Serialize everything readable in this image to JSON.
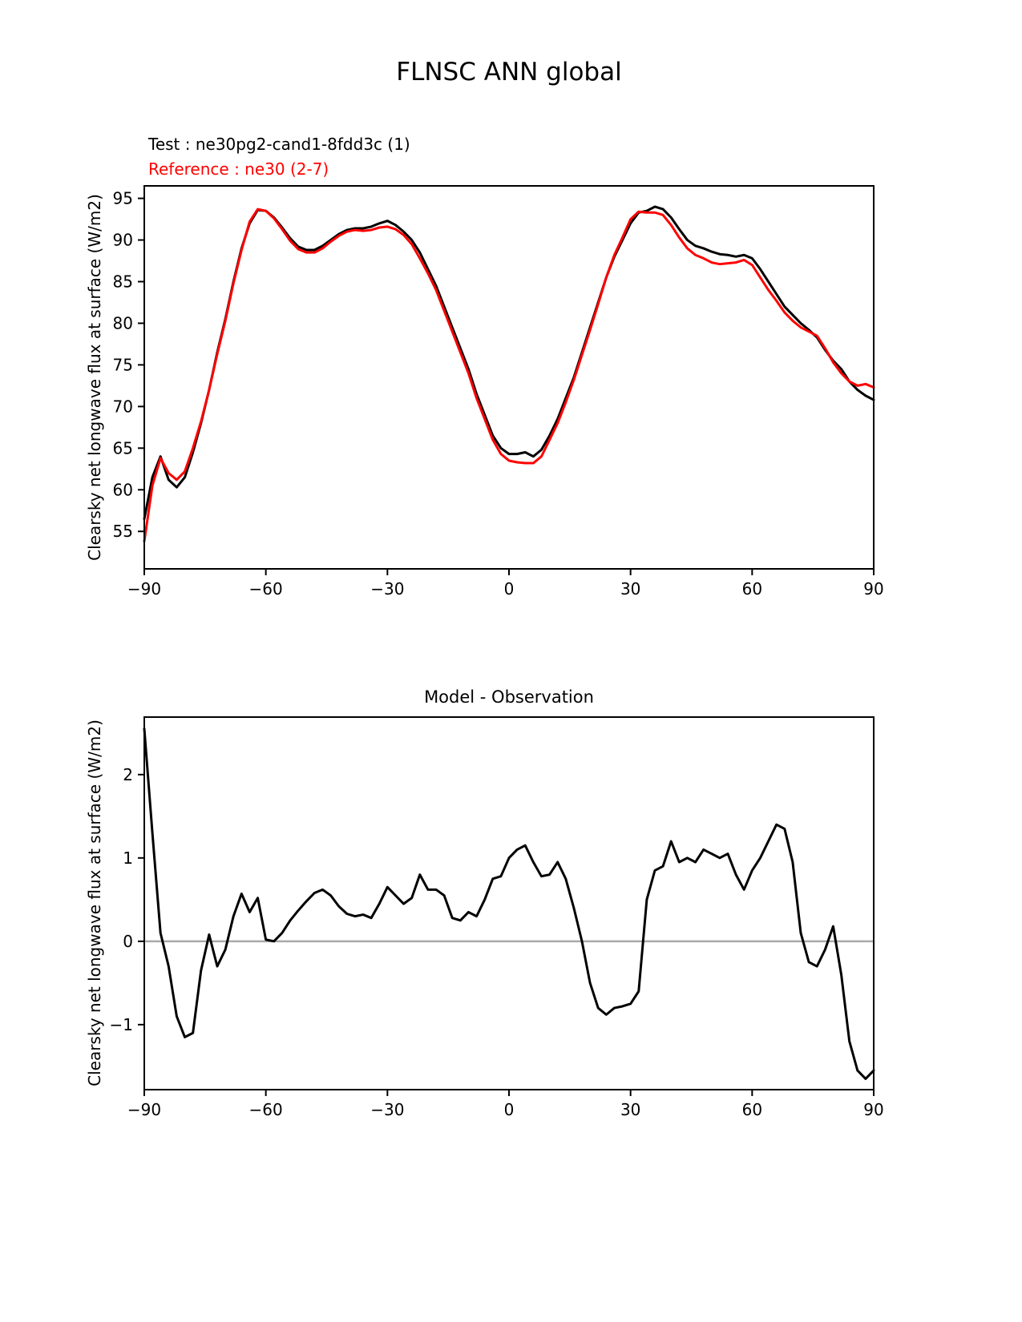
{
  "page_title": "FLNSC ANN global",
  "legend": {
    "test": {
      "label": "Test : ne30pg2-cand1-8fdd3c (1)",
      "color": "#000000"
    },
    "reference": {
      "label": "Reference : ne30 (2-7)",
      "color": "#ff0000"
    }
  },
  "chart_data": [
    {
      "type": "line",
      "title": "FLNSC ANN global",
      "ylabel": "Clearsky net longwave flux at surface (W/m2)",
      "xlim": [
        -90,
        90
      ],
      "ylim": [
        50.5,
        96.5
      ],
      "xticks": [
        -90,
        -60,
        -30,
        0,
        30,
        60,
        90
      ],
      "xtick_labels": [
        "−90",
        "−60",
        "−30",
        "0",
        "30",
        "60",
        "90"
      ],
      "yticks": [
        55,
        60,
        65,
        70,
        75,
        80,
        85,
        90,
        95
      ],
      "ytick_labels": [
        "55",
        "60",
        "65",
        "70",
        "75",
        "80",
        "85",
        "90",
        "95"
      ],
      "grid": false,
      "zero_line": false,
      "x": [
        -90,
        -88,
        -86,
        -84,
        -82,
        -80,
        -78,
        -76,
        -74,
        -72,
        -70,
        -68,
        -66,
        -64,
        -62,
        -60,
        -58,
        -56,
        -54,
        -52,
        -50,
        -48,
        -46,
        -44,
        -42,
        -40,
        -38,
        -36,
        -34,
        -32,
        -30,
        -28,
        -26,
        -24,
        -22,
        -20,
        -18,
        -16,
        -14,
        -12,
        -10,
        -8,
        -6,
        -4,
        -2,
        0,
        2,
        4,
        6,
        8,
        10,
        12,
        14,
        16,
        18,
        20,
        22,
        24,
        26,
        28,
        30,
        32,
        34,
        36,
        38,
        40,
        42,
        44,
        46,
        48,
        50,
        52,
        54,
        56,
        58,
        60,
        62,
        64,
        66,
        68,
        70,
        72,
        74,
        76,
        78,
        80,
        82,
        84,
        86,
        88,
        90
      ],
      "series": [
        {
          "name": "Test : ne30pg2-cand1-8fdd3c (1)",
          "color": "#000000",
          "values": [
            56.5,
            61.5,
            64.0,
            61.2,
            60.3,
            61.5,
            64.5,
            68.0,
            72.0,
            76.5,
            80.5,
            85.0,
            89.0,
            92.0,
            93.6,
            93.5,
            92.7,
            91.5,
            90.2,
            89.2,
            88.8,
            88.8,
            89.3,
            90.0,
            90.7,
            91.2,
            91.4,
            91.4,
            91.6,
            92.0,
            92.3,
            91.8,
            91.0,
            90.0,
            88.5,
            86.5,
            84.5,
            82.0,
            79.5,
            77.0,
            74.5,
            71.5,
            69.0,
            66.5,
            65.0,
            64.3,
            64.3,
            64.5,
            64.0,
            64.8,
            66.5,
            68.5,
            71.0,
            73.5,
            76.5,
            79.5,
            82.5,
            85.5,
            88.0,
            90.0,
            92.0,
            93.3,
            93.5,
            94.0,
            93.7,
            92.7,
            91.3,
            90.0,
            89.3,
            89.0,
            88.6,
            88.3,
            88.2,
            88.0,
            88.2,
            87.8,
            86.5,
            85.0,
            83.5,
            82.0,
            81.0,
            80.0,
            79.2,
            78.3,
            76.8,
            75.5,
            74.5,
            73.0,
            72.0,
            71.3,
            70.8
          ]
        },
        {
          "name": "Reference : ne30 (2-7)",
          "color": "#ff0000",
          "values": [
            53.8,
            60.5,
            63.8,
            62.0,
            61.2,
            62.2,
            65.0,
            68.2,
            72.0,
            76.3,
            80.3,
            84.8,
            88.8,
            92.2,
            93.7,
            93.5,
            92.6,
            91.3,
            89.9,
            88.9,
            88.5,
            88.5,
            89.0,
            89.8,
            90.5,
            91.0,
            91.2,
            91.1,
            91.2,
            91.5,
            91.6,
            91.3,
            90.6,
            89.5,
            87.8,
            86.0,
            84.0,
            81.5,
            79.0,
            76.5,
            74.0,
            71.0,
            68.5,
            66.0,
            64.3,
            63.5,
            63.3,
            63.2,
            63.2,
            64.0,
            66.0,
            68.0,
            70.5,
            73.2,
            76.2,
            79.2,
            82.3,
            85.5,
            88.2,
            90.3,
            92.5,
            93.4,
            93.3,
            93.3,
            93.0,
            91.8,
            90.3,
            89.0,
            88.2,
            87.8,
            87.3,
            87.1,
            87.2,
            87.3,
            87.6,
            87.0,
            85.5,
            84.0,
            82.7,
            81.3,
            80.3,
            79.5,
            79.0,
            78.5,
            77.0,
            75.3,
            74.0,
            73.0,
            72.5,
            72.7,
            72.3
          ]
        }
      ]
    },
    {
      "type": "line",
      "title": "Model - Observation",
      "ylabel": "Clearsky net longwave flux at surface (W/m2)",
      "xlim": [
        -90,
        90
      ],
      "ylim": [
        -1.78,
        2.69
      ],
      "xticks": [
        -90,
        -60,
        -30,
        0,
        30,
        60,
        90
      ],
      "xtick_labels": [
        "−90",
        "−60",
        "−30",
        "0",
        "30",
        "60",
        "90"
      ],
      "yticks": [
        -1,
        0,
        1,
        2
      ],
      "ytick_labels": [
        "−1",
        "0",
        "1",
        "2"
      ],
      "grid": false,
      "zero_line": true,
      "zero_line_color": "#a9a9a9",
      "x": [
        -90,
        -88,
        -86,
        -84,
        -82,
        -80,
        -78,
        -76,
        -74,
        -72,
        -70,
        -68,
        -66,
        -64,
        -62,
        -60,
        -58,
        -56,
        -54,
        -52,
        -50,
        -48,
        -46,
        -44,
        -42,
        -40,
        -38,
        -36,
        -34,
        -32,
        -30,
        -28,
        -26,
        -24,
        -22,
        -20,
        -18,
        -16,
        -14,
        -12,
        -10,
        -8,
        -6,
        -4,
        -2,
        0,
        2,
        4,
        6,
        8,
        10,
        12,
        14,
        16,
        18,
        20,
        22,
        24,
        26,
        28,
        30,
        32,
        34,
        36,
        38,
        40,
        42,
        44,
        46,
        48,
        50,
        52,
        54,
        56,
        58,
        60,
        62,
        64,
        66,
        68,
        70,
        72,
        74,
        76,
        78,
        80,
        82,
        84,
        86,
        88,
        90
      ],
      "series": [
        {
          "name": "Model - Observation",
          "color": "#000000",
          "values": [
            2.55,
            1.3,
            0.1,
            -0.3,
            -0.9,
            -1.15,
            -1.1,
            -0.35,
            0.08,
            -0.3,
            -0.1,
            0.3,
            0.57,
            0.35,
            0.52,
            0.02,
            0.0,
            0.1,
            0.25,
            0.37,
            0.48,
            0.58,
            0.62,
            0.55,
            0.42,
            0.33,
            0.3,
            0.32,
            0.28,
            0.45,
            0.65,
            0.55,
            0.45,
            0.52,
            0.8,
            0.62,
            0.62,
            0.55,
            0.28,
            0.25,
            0.35,
            0.3,
            0.5,
            0.75,
            0.78,
            1.0,
            1.1,
            1.15,
            0.95,
            0.78,
            0.8,
            0.95,
            0.75,
            0.4,
            0.0,
            -0.5,
            -0.8,
            -0.88,
            -0.8,
            -0.78,
            -0.75,
            -0.6,
            0.5,
            0.85,
            0.9,
            1.2,
            0.95,
            1.0,
            0.95,
            1.1,
            1.05,
            1.0,
            1.05,
            0.8,
            0.62,
            0.85,
            1.0,
            1.2,
            1.4,
            1.35,
            0.95,
            0.1,
            -0.25,
            -0.3,
            -0.1,
            0.18,
            -0.4,
            -1.2,
            -1.55,
            -1.65,
            -1.55
          ]
        }
      ]
    }
  ]
}
